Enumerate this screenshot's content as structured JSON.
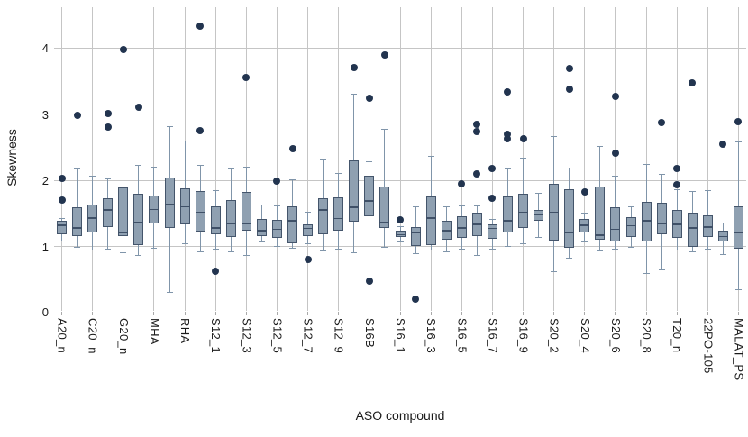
{
  "figure": {
    "y_axis": {
      "title": "Skewness",
      "tick_labels": [
        "0",
        "1",
        "2",
        "3",
        "4"
      ]
    },
    "x_axis": {
      "title": "ASO compound"
    }
  },
  "style": {
    "background": "#ffffff",
    "gridline_color": "#c5c5c5",
    "tick_color": "#a9a9a9",
    "box_fill": "#8fa0b1",
    "box_border": "#44556b",
    "median_color": "#3f5067",
    "whisker_color": "#8095aa",
    "outlier_color": "#22344f",
    "text_color": "#1a1a1a"
  },
  "chart_data": {
    "type": "boxplot",
    "title": "",
    "xlabel": "ASO compound",
    "ylabel": "Skewness",
    "ylim": [
      0,
      4.6
    ],
    "y_ticks": [
      0,
      1,
      2,
      3,
      4
    ],
    "grid": "on",
    "layout_note": "45 box-and-whisker items; x gridlines and labels only on alternate (even-index) items",
    "boxes": [
      {
        "label": "A20_n",
        "whisker_lo": 1.09,
        "q1": 1.18,
        "median": 1.32,
        "q3": 1.39,
        "whisker_hi": 1.43,
        "outliers": [
          2.03,
          1.7
        ]
      },
      {
        "label": "",
        "whisker_lo": 0.99,
        "q1": 1.16,
        "median": 1.28,
        "q3": 1.59,
        "whisker_hi": 2.18,
        "outliers": [
          2.98
        ]
      },
      {
        "label": "C20_n",
        "whisker_lo": 0.95,
        "q1": 1.21,
        "median": 1.43,
        "q3": 1.63,
        "whisker_hi": 2.07,
        "outliers": []
      },
      {
        "label": "",
        "whisker_lo": 0.97,
        "q1": 1.29,
        "median": 1.55,
        "q3": 1.73,
        "whisker_hi": 2.03,
        "outliers": [
          3.01,
          2.8
        ]
      },
      {
        "label": "G20_n",
        "whisker_lo": 0.91,
        "q1": 1.16,
        "median": 1.21,
        "q3": 1.89,
        "whisker_hi": 2.04,
        "outliers": [
          3.97
        ]
      },
      {
        "label": "",
        "whisker_lo": 0.87,
        "q1": 1.02,
        "median": 1.36,
        "q3": 1.8,
        "whisker_hi": 2.23,
        "outliers": [
          3.1
        ]
      },
      {
        "label": "MHA",
        "whisker_lo": 0.98,
        "q1": 1.35,
        "median": 1.56,
        "q3": 1.77,
        "whisker_hi": 2.2,
        "outliers": []
      },
      {
        "label": "",
        "whisker_lo": 0.31,
        "q1": 1.28,
        "median": 1.63,
        "q3": 2.04,
        "whisker_hi": 2.82,
        "outliers": []
      },
      {
        "label": "RHA",
        "whisker_lo": 1.05,
        "q1": 1.34,
        "median": 1.6,
        "q3": 1.88,
        "whisker_hi": 2.6,
        "outliers": []
      },
      {
        "label": "",
        "whisker_lo": 0.93,
        "q1": 1.23,
        "median": 1.52,
        "q3": 1.84,
        "whisker_hi": 2.23,
        "outliers": [
          4.33,
          2.75
        ]
      },
      {
        "label": "S12_1",
        "whisker_lo": 0.97,
        "q1": 1.18,
        "median": 1.28,
        "q3": 1.6,
        "whisker_hi": 1.85,
        "outliers": [
          0.63
        ]
      },
      {
        "label": "",
        "whisker_lo": 0.92,
        "q1": 1.14,
        "median": 1.34,
        "q3": 1.7,
        "whisker_hi": 2.18,
        "outliers": []
      },
      {
        "label": "S12_3",
        "whisker_lo": 0.87,
        "q1": 1.24,
        "median": 1.34,
        "q3": 1.82,
        "whisker_hi": 2.2,
        "outliers": [
          3.55
        ]
      },
      {
        "label": "",
        "whisker_lo": 1.07,
        "q1": 1.16,
        "median": 1.24,
        "q3": 1.42,
        "whisker_hi": 1.63,
        "outliers": []
      },
      {
        "label": "S12_5",
        "whisker_lo": 1.01,
        "q1": 1.13,
        "median": 1.26,
        "q3": 1.4,
        "whisker_hi": 1.62,
        "outliers": [
          1.99
        ]
      },
      {
        "label": "",
        "whisker_lo": 0.98,
        "q1": 1.05,
        "median": 1.39,
        "q3": 1.61,
        "whisker_hi": 2.02,
        "outliers": [
          2.48
        ]
      },
      {
        "label": "S12_7",
        "whisker_lo": 1.05,
        "q1": 1.16,
        "median": 1.27,
        "q3": 1.34,
        "whisker_hi": 1.52,
        "outliers": [
          0.8
        ]
      },
      {
        "label": "",
        "whisker_lo": 0.94,
        "q1": 1.18,
        "median": 1.55,
        "q3": 1.73,
        "whisker_hi": 2.31,
        "outliers": []
      },
      {
        "label": "S12_9",
        "whisker_lo": 0.96,
        "q1": 1.24,
        "median": 1.42,
        "q3": 1.74,
        "whisker_hi": 2.11,
        "outliers": []
      },
      {
        "label": "",
        "whisker_lo": 0.91,
        "q1": 1.37,
        "median": 1.59,
        "q3": 2.3,
        "whisker_hi": 3.31,
        "outliers": [
          3.7
        ]
      },
      {
        "label": "S16B",
        "whisker_lo": 0.66,
        "q1": 1.46,
        "median": 1.69,
        "q3": 2.07,
        "whisker_hi": 2.29,
        "outliers": [
          3.24,
          0.48
        ]
      },
      {
        "label": "",
        "whisker_lo": 0.99,
        "q1": 1.28,
        "median": 1.36,
        "q3": 1.9,
        "whisker_hi": 2.78,
        "outliers": [
          3.89
        ]
      },
      {
        "label": "S16_1",
        "whisker_lo": 1.07,
        "q1": 1.14,
        "median": 1.18,
        "q3": 1.24,
        "whisker_hi": 1.3,
        "outliers": [
          1.4
        ]
      },
      {
        "label": "",
        "whisker_lo": 0.9,
        "q1": 1.01,
        "median": 1.21,
        "q3": 1.29,
        "whisker_hi": 1.61,
        "outliers": [
          0.2
        ]
      },
      {
        "label": "S16_3",
        "whisker_lo": 0.95,
        "q1": 1.02,
        "median": 1.43,
        "q3": 1.75,
        "whisker_hi": 2.37,
        "outliers": []
      },
      {
        "label": "",
        "whisker_lo": 0.92,
        "q1": 1.1,
        "median": 1.24,
        "q3": 1.39,
        "whisker_hi": 1.61,
        "outliers": []
      },
      {
        "label": "S16_5",
        "whisker_lo": 0.96,
        "q1": 1.13,
        "median": 1.28,
        "q3": 1.46,
        "whisker_hi": 1.62,
        "outliers": [
          1.95
        ]
      },
      {
        "label": "",
        "whisker_lo": 0.87,
        "q1": 1.15,
        "median": 1.33,
        "q3": 1.51,
        "whisker_hi": 1.62,
        "outliers": [
          2.84,
          2.73,
          2.09
        ]
      },
      {
        "label": "S16_7",
        "whisker_lo": 0.97,
        "q1": 1.12,
        "median": 1.27,
        "q3": 1.33,
        "whisker_hi": 1.41,
        "outliers": [
          2.18,
          1.73
        ]
      },
      {
        "label": "",
        "whisker_lo": 1.01,
        "q1": 1.21,
        "median": 1.39,
        "q3": 1.75,
        "whisker_hi": 2.18,
        "outliers": [
          3.33,
          2.69,
          2.63
        ]
      },
      {
        "label": "S16_9",
        "whisker_lo": 1.05,
        "q1": 1.28,
        "median": 1.52,
        "q3": 1.8,
        "whisker_hi": 2.34,
        "outliers": [
          2.63
        ]
      },
      {
        "label": "",
        "whisker_lo": 1.14,
        "q1": 1.39,
        "median": 1.48,
        "q3": 1.55,
        "whisker_hi": 1.81,
        "outliers": []
      },
      {
        "label": "S20_2",
        "whisker_lo": 0.62,
        "q1": 1.09,
        "median": 1.52,
        "q3": 1.95,
        "whisker_hi": 2.66,
        "outliers": []
      },
      {
        "label": "",
        "whisker_lo": 0.83,
        "q1": 0.98,
        "median": 1.21,
        "q3": 1.86,
        "whisker_hi": 2.19,
        "outliers": [
          3.69,
          3.38
        ]
      },
      {
        "label": "S20_4",
        "whisker_lo": 1.07,
        "q1": 1.21,
        "median": 1.32,
        "q3": 1.41,
        "whisker_hi": 1.51,
        "outliers": [
          1.82
        ]
      },
      {
        "label": "",
        "whisker_lo": 0.94,
        "q1": 1.1,
        "median": 1.17,
        "q3": 1.9,
        "whisker_hi": 2.52,
        "outliers": []
      },
      {
        "label": "S20_6",
        "whisker_lo": 0.96,
        "q1": 1.08,
        "median": 1.26,
        "q3": 1.59,
        "whisker_hi": 2.07,
        "outliers": [
          3.27,
          2.41
        ]
      },
      {
        "label": "",
        "whisker_lo": 0.99,
        "q1": 1.14,
        "median": 1.31,
        "q3": 1.44,
        "whisker_hi": 1.61,
        "outliers": []
      },
      {
        "label": "S20_8",
        "whisker_lo": 0.6,
        "q1": 1.08,
        "median": 1.39,
        "q3": 1.67,
        "whisker_hi": 2.25,
        "outliers": []
      },
      {
        "label": "",
        "whisker_lo": 0.65,
        "q1": 1.18,
        "median": 1.34,
        "q3": 1.66,
        "whisker_hi": 2.1,
        "outliers": [
          2.87
        ]
      },
      {
        "label": "T20_n",
        "whisker_lo": 0.95,
        "q1": 1.13,
        "median": 1.33,
        "q3": 1.55,
        "whisker_hi": 1.86,
        "outliers": [
          2.18,
          1.93
        ]
      },
      {
        "label": "",
        "whisker_lo": 0.92,
        "q1": 0.99,
        "median": 1.28,
        "q3": 1.51,
        "whisker_hi": 1.84,
        "outliers": [
          3.47
        ]
      },
      {
        "label": "22PO-105",
        "whisker_lo": 0.97,
        "q1": 1.14,
        "median": 1.29,
        "q3": 1.47,
        "whisker_hi": 1.85,
        "outliers": []
      },
      {
        "label": "",
        "whisker_lo": 0.89,
        "q1": 1.07,
        "median": 1.15,
        "q3": 1.24,
        "whisker_hi": 1.36,
        "outliers": [
          2.54
        ]
      },
      {
        "label": "MALAT_PS",
        "whisker_lo": 0.35,
        "q1": 0.97,
        "median": 1.21,
        "q3": 1.61,
        "whisker_hi": 2.58,
        "outliers": [
          2.89
        ]
      }
    ]
  }
}
